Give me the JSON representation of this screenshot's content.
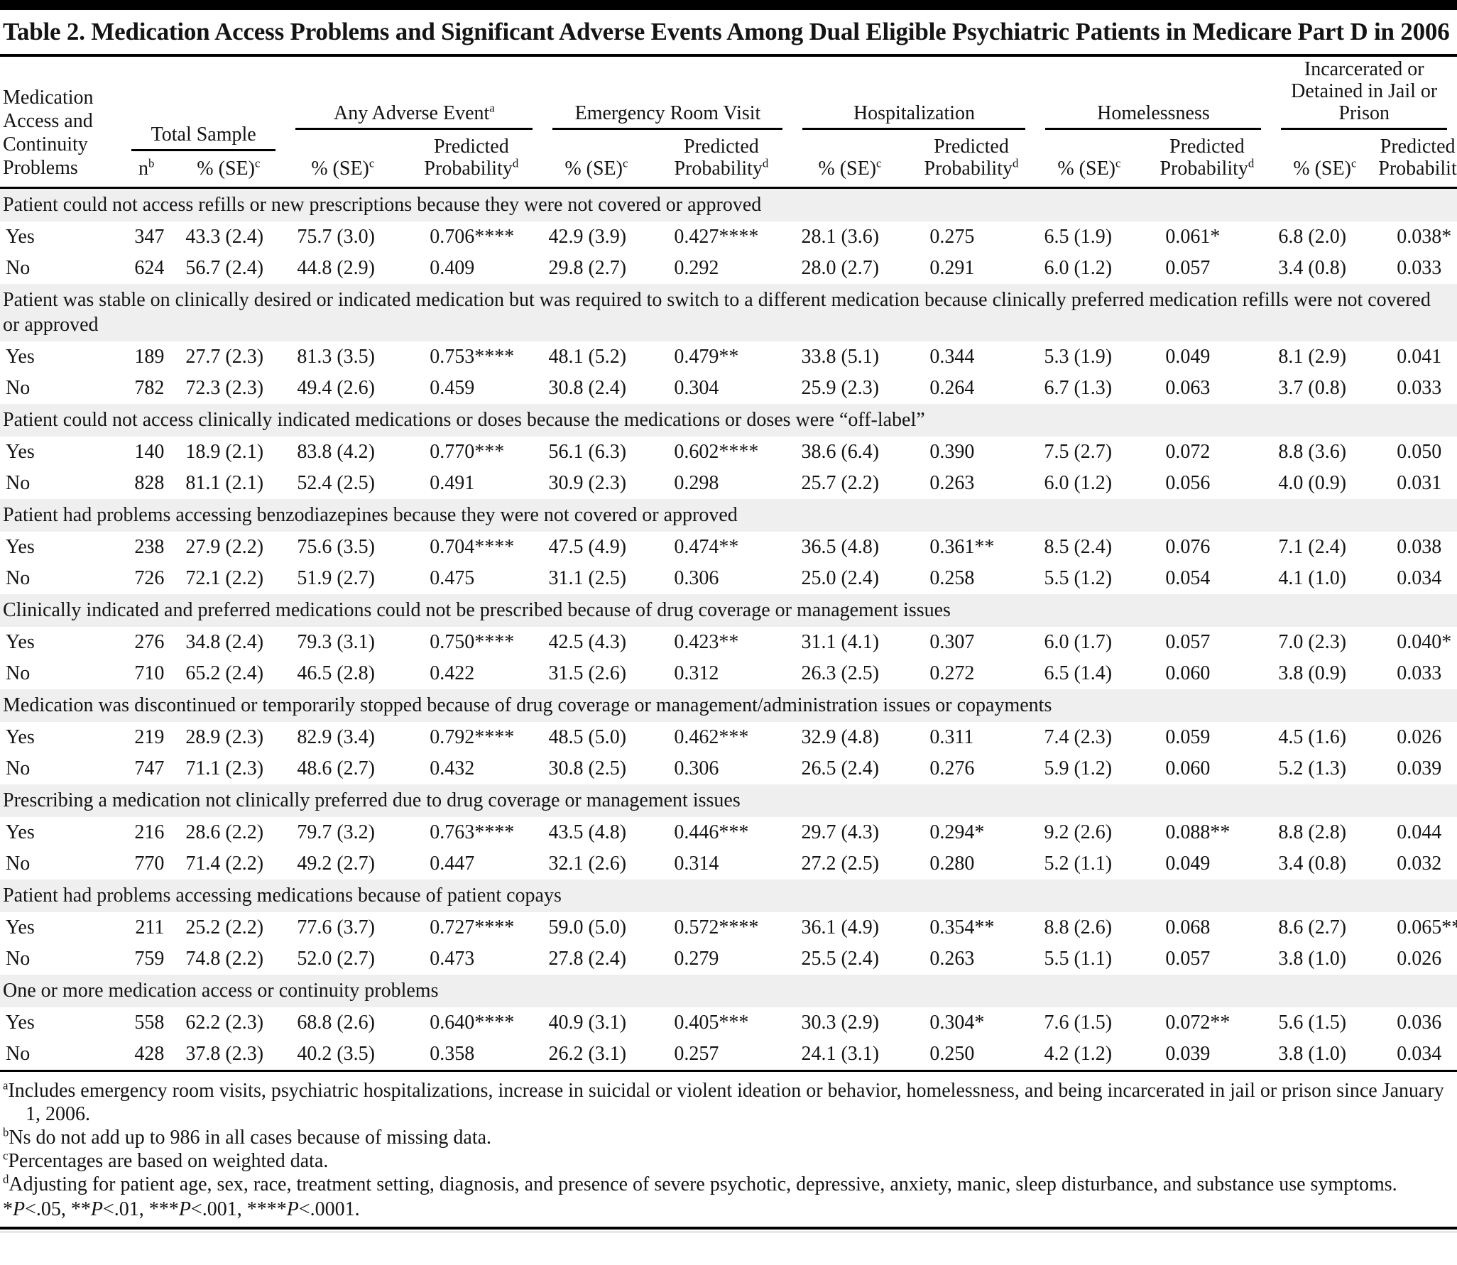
{
  "title": "Table 2. Medication Access Problems and Significant Adverse Events Among Dual Eligible Psychiatric Patients in Medicare Part D in 2006",
  "header": {
    "stub": "Medication Access and Continuity Problems",
    "total_sample": {
      "label": "Total Sample"
    },
    "groups": [
      {
        "label": "Any Adverse Event",
        "sup": "a"
      },
      {
        "label": "Emergency Room Visit",
        "sup": ""
      },
      {
        "label": "Hospitalization",
        "sup": ""
      },
      {
        "label": "Homelessness",
        "sup": ""
      },
      {
        "label": "Incarcerated or Detained in Jail or Prison",
        "sup": ""
      }
    ],
    "sub_n": {
      "text": "n",
      "sup": "b"
    },
    "sub_pct": {
      "text": "% (SE)",
      "sup": "c"
    },
    "sub_pred": {
      "line1": "Predicted",
      "line2": "Probability",
      "sup": "d"
    }
  },
  "sections": [
    {
      "label": "Patient could not access refills or new prescriptions because they were not covered or approved",
      "rows": [
        {
          "label": "Yes",
          "values": [
            "347",
            "43.3 (2.4)",
            "75.7 (3.0)",
            "0.706****",
            "42.9 (3.9)",
            "0.427****",
            "28.1 (3.6)",
            "0.275",
            "6.5 (1.9)",
            "0.061*",
            "6.8 (2.0)",
            "0.038*"
          ]
        },
        {
          "label": "No",
          "values": [
            "624",
            "56.7 (2.4)",
            "44.8 (2.9)",
            "0.409",
            "29.8 (2.7)",
            "0.292",
            "28.0 (2.7)",
            "0.291",
            "6.0 (1.2)",
            "0.057",
            "3.4 (0.8)",
            "0.033"
          ]
        }
      ]
    },
    {
      "label": "Patient was stable on clinically desired or indicated medication but was required to switch to a different medication because clinically preferred medication refills were not covered or approved",
      "rows": [
        {
          "label": "Yes",
          "values": [
            "189",
            "27.7 (2.3)",
            "81.3 (3.5)",
            "0.753****",
            "48.1 (5.2)",
            "0.479**",
            "33.8 (5.1)",
            "0.344",
            "5.3 (1.9)",
            "0.049",
            "8.1 (2.9)",
            "0.041"
          ]
        },
        {
          "label": "No",
          "values": [
            "782",
            "72.3 (2.3)",
            "49.4 (2.6)",
            "0.459",
            "30.8 (2.4)",
            "0.304",
            "25.9 (2.3)",
            "0.264",
            "6.7 (1.3)",
            "0.063",
            "3.7 (0.8)",
            "0.033"
          ]
        }
      ]
    },
    {
      "label": "Patient could not access clinically indicated medications or doses because the medications or doses were “off-label”",
      "rows": [
        {
          "label": "Yes",
          "values": [
            "140",
            "18.9 (2.1)",
            "83.8 (4.2)",
            "0.770***",
            "56.1 (6.3)",
            "0.602****",
            "38.6 (6.4)",
            "0.390",
            "7.5 (2.7)",
            "0.072",
            "8.8 (3.6)",
            "0.050"
          ]
        },
        {
          "label": "No",
          "values": [
            "828",
            "81.1 (2.1)",
            "52.4 (2.5)",
            "0.491",
            "30.9 (2.3)",
            "0.298",
            "25.7 (2.2)",
            "0.263",
            "6.0 (1.2)",
            "0.056",
            "4.0 (0.9)",
            "0.031"
          ]
        }
      ]
    },
    {
      "label": "Patient had problems accessing benzodiazepines because they were not covered or approved",
      "rows": [
        {
          "label": "Yes",
          "values": [
            "238",
            "27.9 (2.2)",
            "75.6 (3.5)",
            "0.704****",
            "47.5 (4.9)",
            "0.474**",
            "36.5 (4.8)",
            "0.361**",
            "8.5 (2.4)",
            "0.076",
            "7.1 (2.4)",
            "0.038"
          ]
        },
        {
          "label": "No",
          "values": [
            "726",
            "72.1 (2.2)",
            "51.9 (2.7)",
            "0.475",
            "31.1 (2.5)",
            "0.306",
            "25.0 (2.4)",
            "0.258",
            "5.5 (1.2)",
            "0.054",
            "4.1 (1.0)",
            "0.034"
          ]
        }
      ]
    },
    {
      "label": "Clinically indicated and preferred medications could not be prescribed because of drug coverage or management issues",
      "rows": [
        {
          "label": "Yes",
          "values": [
            "276",
            "34.8 (2.4)",
            "79.3 (3.1)",
            "0.750****",
            "42.5 (4.3)",
            "0.423**",
            "31.1 (4.1)",
            "0.307",
            "6.0 (1.7)",
            "0.057",
            "7.0 (2.3)",
            "0.040*"
          ]
        },
        {
          "label": "No",
          "values": [
            "710",
            "65.2 (2.4)",
            "46.5 (2.8)",
            "0.422",
            "31.5 (2.6)",
            "0.312",
            "26.3 (2.5)",
            "0.272",
            "6.5 (1.4)",
            "0.060",
            "3.8 (0.9)",
            "0.033"
          ]
        }
      ]
    },
    {
      "label": "Medication was discontinued or temporarily stopped because of drug coverage or management/administration issues or copayments",
      "rows": [
        {
          "label": "Yes",
          "values": [
            "219",
            "28.9 (2.3)",
            "82.9 (3.4)",
            "0.792****",
            "48.5 (5.0)",
            "0.462***",
            "32.9 (4.8)",
            "0.311",
            "7.4 (2.3)",
            "0.059",
            "4.5 (1.6)",
            "0.026"
          ]
        },
        {
          "label": "No",
          "values": [
            "747",
            "71.1 (2.3)",
            "48.6 (2.7)",
            "0.432",
            "30.8 (2.5)",
            "0.306",
            "26.5 (2.4)",
            "0.276",
            "5.9 (1.2)",
            "0.060",
            "5.2 (1.3)",
            "0.039"
          ]
        }
      ]
    },
    {
      "label": "Prescribing a medication not clinically preferred due to drug coverage or management issues",
      "rows": [
        {
          "label": "Yes",
          "values": [
            "216",
            "28.6 (2.2)",
            "79.7 (3.2)",
            "0.763****",
            "43.5 (4.8)",
            "0.446***",
            "29.7 (4.3)",
            "0.294*",
            "9.2 (2.6)",
            "0.088**",
            "8.8 (2.8)",
            "0.044"
          ]
        },
        {
          "label": "No",
          "values": [
            "770",
            "71.4 (2.2)",
            "49.2 (2.7)",
            "0.447",
            "32.1 (2.6)",
            "0.314",
            "27.2 (2.5)",
            "0.280",
            "5.2 (1.1)",
            "0.049",
            "3.4 (0.8)",
            "0.032"
          ]
        }
      ]
    },
    {
      "label": "Patient had problems accessing medications because of patient copays",
      "rows": [
        {
          "label": "Yes",
          "values": [
            "211",
            "25.2 (2.2)",
            "77.6 (3.7)",
            "0.727****",
            "59.0 (5.0)",
            "0.572****",
            "36.1 (4.9)",
            "0.354**",
            "8.8 (2.6)",
            "0.068",
            "8.6 (2.7)",
            "0.065**"
          ]
        },
        {
          "label": "No",
          "values": [
            "759",
            "74.8 (2.2)",
            "52.0 (2.7)",
            "0.473",
            "27.8 (2.4)",
            "0.279",
            "25.5 (2.4)",
            "0.263",
            "5.5 (1.1)",
            "0.057",
            "3.8 (1.0)",
            "0.026"
          ]
        }
      ]
    },
    {
      "label": "One or more medication access or continuity problems",
      "rows": [
        {
          "label": "Yes",
          "values": [
            "558",
            "62.2 (2.3)",
            "68.8 (2.6)",
            "0.640****",
            "40.9 (3.1)",
            "0.405***",
            "30.3 (2.9)",
            "0.304*",
            "7.6 (1.5)",
            "0.072**",
            "5.6 (1.5)",
            "0.036"
          ]
        },
        {
          "label": "No",
          "values": [
            "428",
            "37.8 (2.3)",
            "40.2 (3.5)",
            "0.358",
            "26.2 (3.1)",
            "0.257",
            "24.1 (3.1)",
            "0.250",
            "4.2 (1.2)",
            "0.039",
            "3.8 (1.0)",
            "0.034"
          ]
        }
      ]
    }
  ],
  "footnotes": [
    {
      "marker": "a",
      "text": "Includes emergency room visits, psychiatric hospitalizations, increase in suicidal or violent ideation or behavior, homelessness, and being incarcerated in jail or prison since January 1, 2006."
    },
    {
      "marker": "b",
      "text": "Ns do not add up to 986 in all cases because of missing data."
    },
    {
      "marker": "c",
      "text": "Percentages are based on weighted data."
    },
    {
      "marker": "d",
      "text": "Adjusting for patient age, sex, race, treatment setting, diagnosis, and presence of severe psychotic, depressive, anxiety, manic, sleep disturbance, and substance use symptoms."
    }
  ],
  "significance": {
    "segments": [
      {
        "text": "*"
      },
      {
        "text": "P",
        "italic": true
      },
      {
        "text": "<.05, **"
      },
      {
        "text": "P",
        "italic": true
      },
      {
        "text": "<.01, ***"
      },
      {
        "text": "P",
        "italic": true
      },
      {
        "text": "<.001, ****"
      },
      {
        "text": "P",
        "italic": true
      },
      {
        "text": "<.0001."
      }
    ]
  },
  "colors": {
    "section_band": "#efefef",
    "rule": "#000000",
    "text": "#141414",
    "background": "#ffffff"
  }
}
